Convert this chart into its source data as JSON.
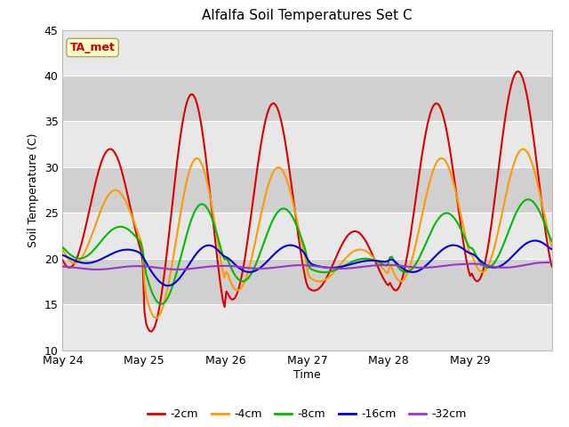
{
  "title": "Alfalfa Soil Temperatures Set C",
  "xlabel": "Time",
  "ylabel": "Soil Temperature (C)",
  "ylim": [
    10,
    45
  ],
  "xlim_days": [
    0,
    6
  ],
  "plot_bg": "#dcdcdc",
  "stripe_light": "#e8e8e8",
  "stripe_dark": "#d0d0d0",
  "colors": {
    "-2cm": "#dd0000",
    "-4cm": "#ff9900",
    "-8cm": "#00bb00",
    "-16cm": "#0000dd",
    "-32cm": "#9933cc"
  },
  "legend_labels": [
    "-2cm",
    "-4cm",
    "-8cm",
    "-16cm",
    "-32cm"
  ],
  "annotation_text": "TA_met",
  "annotation_color": "#cc0000",
  "annotation_bg": "#ffffcc",
  "tick_labels": [
    "May 24",
    "May 25",
    "May 26",
    "May 27",
    "May 28",
    "May 29"
  ],
  "tick_positions": [
    0,
    1,
    2,
    3,
    4,
    5
  ],
  "yticks": [
    10,
    15,
    20,
    25,
    30,
    35,
    40,
    45
  ]
}
